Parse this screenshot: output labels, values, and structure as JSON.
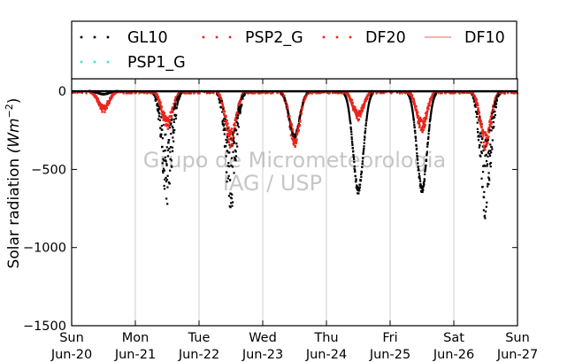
{
  "chart_data": {
    "type": "scatter",
    "ylabel": "Solar radiation (W m^-2)",
    "ylabel_parts": {
      "main": "Solar radiation ",
      "math": "(Wm",
      "exp": "−2",
      "close": ")"
    },
    "ylim": [
      -1500,
      80
    ],
    "yticks": [
      {
        "value": 0,
        "label": "0"
      },
      {
        "value": -500,
        "label": "−500"
      },
      {
        "value": -1000,
        "label": "−1000"
      },
      {
        "value": -1500,
        "label": "−1500"
      }
    ],
    "xlim": [
      0,
      7
    ],
    "xticks": [
      {
        "value": 0,
        "day": "Sun",
        "date": "Jun-20"
      },
      {
        "value": 1,
        "day": "Mon",
        "date": "Jun-21"
      },
      {
        "value": 2,
        "day": "Tue",
        "date": "Jun-22"
      },
      {
        "value": 3,
        "day": "Wed",
        "date": "Jun-23"
      },
      {
        "value": 4,
        "day": "Thu",
        "date": "Jun-24"
      },
      {
        "value": 5,
        "day": "Fri",
        "date": "Jun-25"
      },
      {
        "value": 6,
        "day": "Sat",
        "date": "Jun-26"
      },
      {
        "value": 7,
        "day": "Sun",
        "date": "Jun-27"
      }
    ],
    "grid": {
      "x": true,
      "y": false
    },
    "legend_placement": "top",
    "watermark": [
      "Grupo de Micrometeorologia",
      "IAG / USP"
    ],
    "series": [
      {
        "name": "GL10",
        "style": "dots",
        "color": "#000000",
        "daily_peaks": [
          -20,
          -750,
          -770,
          -300,
          -660,
          -650,
          -830
        ]
      },
      {
        "name": "PSP2_G",
        "style": "dots",
        "color": "#e8261c",
        "daily_peaks": [
          -120,
          -220,
          -330,
          -330,
          -170,
          -240,
          -350
        ]
      },
      {
        "name": "DF20",
        "style": "dots",
        "color": "#e8261c",
        "daily_peaks": [
          -120,
          -220,
          -330,
          -330,
          -170,
          -240,
          -350
        ]
      },
      {
        "name": "DF10",
        "style": "line",
        "color": "#f08080",
        "values": [
          0,
          0,
          0,
          0,
          0,
          0,
          0,
          0
        ]
      },
      {
        "name": "PSP1_G",
        "style": "dots",
        "color": "#40e0d0",
        "values": []
      }
    ]
  }
}
